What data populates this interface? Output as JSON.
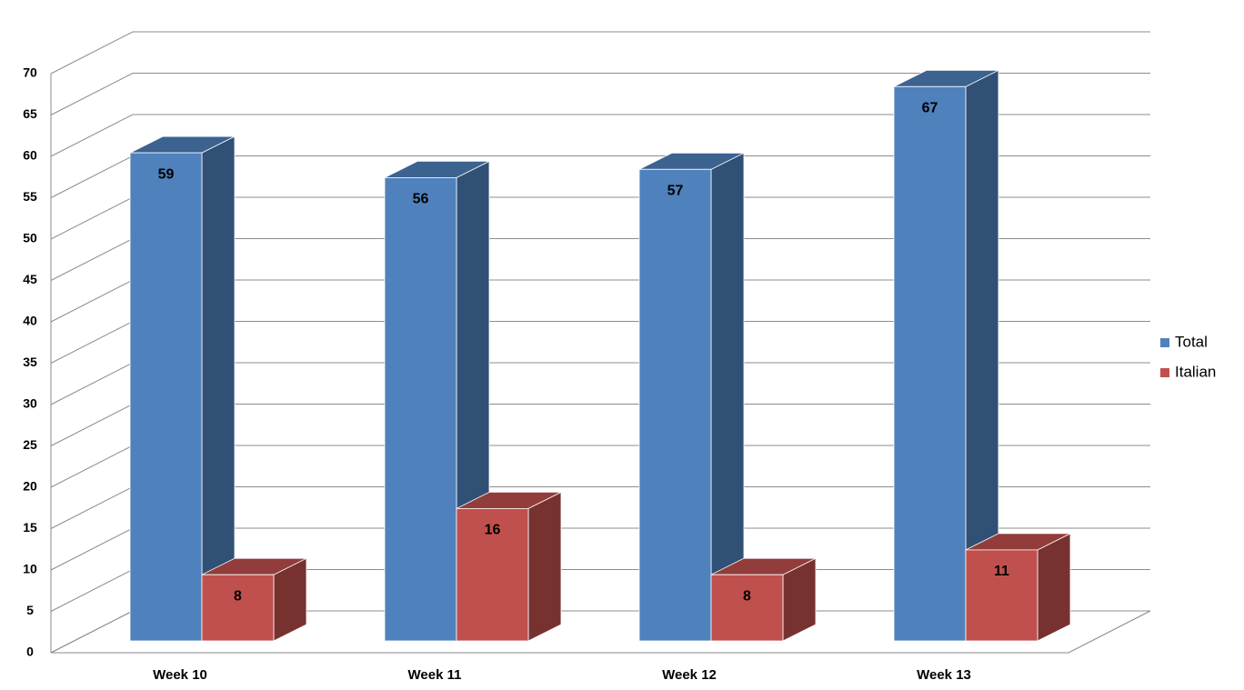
{
  "chart_data": {
    "type": "bar3d",
    "categories": [
      "Week 10",
      "Week 11",
      "Week 12",
      "Week 13"
    ],
    "series": [
      {
        "name": "Total",
        "color": "#4f81bd",
        "values": [
          59,
          56,
          57,
          67
        ]
      },
      {
        "name": "Italian",
        "color": "#c0504d",
        "values": [
          8,
          16,
          8,
          11
        ]
      }
    ],
    "ylim": [
      0,
      70
    ],
    "yticks": [
      0,
      5,
      10,
      15,
      20,
      25,
      30,
      35,
      40,
      45,
      50,
      55,
      60,
      65,
      70
    ],
    "grid": true,
    "legend": "right"
  }
}
